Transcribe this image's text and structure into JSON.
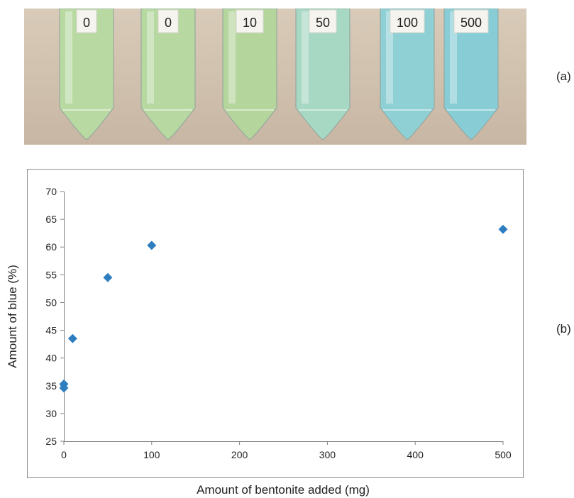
{
  "panel_labels": {
    "a": "(a)",
    "b": "(b)"
  },
  "photo": {
    "tubes": [
      {
        "label": "0",
        "color": "#b9d9a2"
      },
      {
        "label": "0",
        "color": "#b7d8a0"
      },
      {
        "label": "10",
        "color": "#b4d59c"
      },
      {
        "label": "50",
        "color": "#a6d8c4"
      },
      {
        "label": "100",
        "color": "#8fd0d4"
      },
      {
        "label": "500",
        "color": "#88cdd6"
      }
    ]
  },
  "chart_data": {
    "type": "scatter",
    "title": "",
    "xlabel": "Amount of bentonite added (mg)",
    "ylabel": "Amount of blue (%)",
    "xlim": [
      0,
      500
    ],
    "ylim": [
      25,
      70
    ],
    "xticks": [
      0,
      100,
      200,
      300,
      400,
      500
    ],
    "yticks": [
      25,
      30,
      35,
      40,
      45,
      50,
      55,
      60,
      65,
      70
    ],
    "marker_color": "#2e7ebf",
    "grid": false,
    "legend": "none",
    "series": [
      {
        "points": [
          {
            "x": 0,
            "y": 35.3
          },
          {
            "x": 0,
            "y": 34.6
          },
          {
            "x": 10,
            "y": 43.5
          },
          {
            "x": 50,
            "y": 54.5
          },
          {
            "x": 100,
            "y": 60.3
          },
          {
            "x": 500,
            "y": 63.2
          }
        ]
      }
    ]
  }
}
